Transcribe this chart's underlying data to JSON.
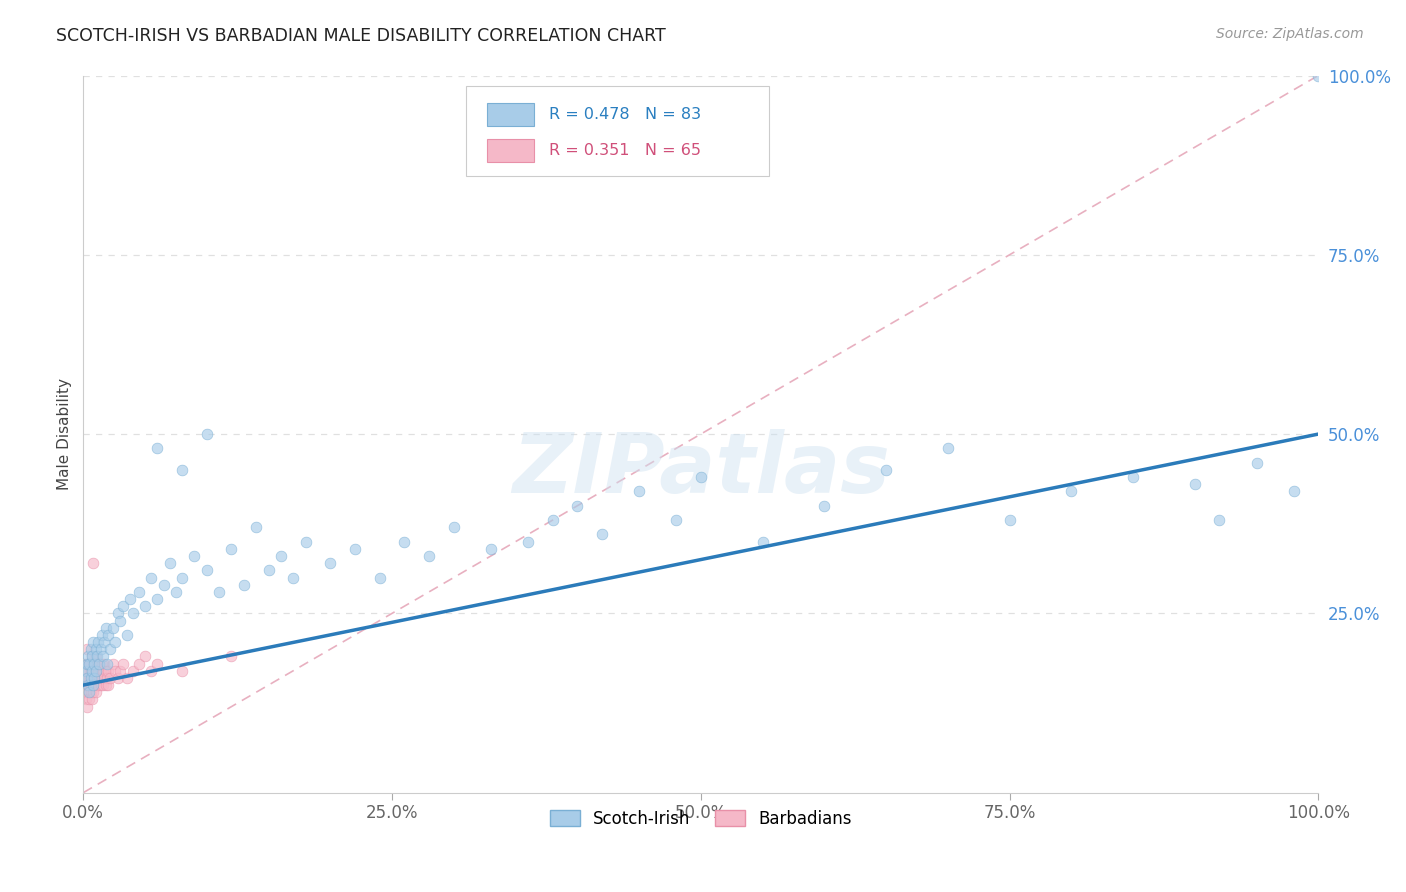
{
  "title": "SCOTCH-IRISH VS BARBADIAN MALE DISABILITY CORRELATION CHART",
  "source": "Source: ZipAtlas.com",
  "ylabel": "Male Disability",
  "watermark": "ZIPatlas",
  "xlim": [
    0.0,
    1.0
  ],
  "ylim": [
    0.0,
    1.0
  ],
  "scotch_irish_color": "#a8cce8",
  "scotch_irish_edge": "#7aafd4",
  "barbadian_color": "#f5b8c8",
  "barbadian_edge": "#e890a8",
  "regression_line_color": "#2b7bba",
  "diagonal_line_color": "#e8b0c0",
  "scotch_irish_R": 0.478,
  "scotch_irish_N": 83,
  "barbadian_R": 0.351,
  "barbadian_N": 65,
  "reg_line_x0": 0.0,
  "reg_line_y0": 0.15,
  "reg_line_x1": 1.0,
  "reg_line_y1": 0.5,
  "diag_line_x0": 0.0,
  "diag_line_y0": 0.0,
  "diag_line_x1": 1.0,
  "diag_line_y1": 1.0,
  "background_color": "#ffffff",
  "grid_color": "#e0e0e0",
  "ytick_color": "#4a90d9",
  "xtick_color": "#666666",
  "marker_size": 60,
  "marker_alpha": 0.65,
  "scotch_irish_x": [
    0.002,
    0.003,
    0.003,
    0.004,
    0.004,
    0.005,
    0.005,
    0.006,
    0.006,
    0.007,
    0.007,
    0.008,
    0.008,
    0.009,
    0.009,
    0.01,
    0.01,
    0.011,
    0.012,
    0.013,
    0.014,
    0.015,
    0.016,
    0.017,
    0.018,
    0.019,
    0.02,
    0.022,
    0.024,
    0.026,
    0.028,
    0.03,
    0.032,
    0.035,
    0.038,
    0.04,
    0.045,
    0.05,
    0.055,
    0.06,
    0.065,
    0.07,
    0.075,
    0.08,
    0.09,
    0.1,
    0.11,
    0.12,
    0.13,
    0.14,
    0.15,
    0.16,
    0.17,
    0.18,
    0.2,
    0.22,
    0.24,
    0.26,
    0.28,
    0.3,
    0.33,
    0.36,
    0.38,
    0.4,
    0.42,
    0.45,
    0.48,
    0.5,
    0.55,
    0.6,
    0.65,
    0.7,
    0.75,
    0.8,
    0.85,
    0.9,
    0.92,
    0.95,
    0.98,
    1.0,
    0.06,
    0.08,
    0.1
  ],
  "scotch_irish_y": [
    0.17,
    0.16,
    0.18,
    0.15,
    0.19,
    0.14,
    0.18,
    0.2,
    0.16,
    0.17,
    0.19,
    0.15,
    0.21,
    0.16,
    0.18,
    0.2,
    0.17,
    0.19,
    0.21,
    0.18,
    0.2,
    0.22,
    0.19,
    0.21,
    0.23,
    0.18,
    0.22,
    0.2,
    0.23,
    0.21,
    0.25,
    0.24,
    0.26,
    0.22,
    0.27,
    0.25,
    0.28,
    0.26,
    0.3,
    0.27,
    0.29,
    0.32,
    0.28,
    0.3,
    0.33,
    0.31,
    0.28,
    0.34,
    0.29,
    0.37,
    0.31,
    0.33,
    0.3,
    0.35,
    0.32,
    0.34,
    0.3,
    0.35,
    0.33,
    0.37,
    0.34,
    0.35,
    0.38,
    0.4,
    0.36,
    0.42,
    0.38,
    0.44,
    0.35,
    0.4,
    0.45,
    0.48,
    0.38,
    0.42,
    0.44,
    0.43,
    0.38,
    0.46,
    0.42,
    1.0,
    0.48,
    0.45,
    0.5
  ],
  "barbadian_x": [
    0.001,
    0.001,
    0.001,
    0.002,
    0.002,
    0.002,
    0.003,
    0.003,
    0.003,
    0.003,
    0.004,
    0.004,
    0.004,
    0.005,
    0.005,
    0.005,
    0.006,
    0.006,
    0.006,
    0.007,
    0.007,
    0.007,
    0.008,
    0.008,
    0.008,
    0.009,
    0.009,
    0.009,
    0.01,
    0.01,
    0.01,
    0.011,
    0.011,
    0.012,
    0.012,
    0.013,
    0.013,
    0.014,
    0.014,
    0.015,
    0.015,
    0.016,
    0.016,
    0.017,
    0.017,
    0.018,
    0.018,
    0.019,
    0.02,
    0.02,
    0.022,
    0.024,
    0.026,
    0.028,
    0.03,
    0.032,
    0.035,
    0.04,
    0.045,
    0.05,
    0.055,
    0.06,
    0.08,
    0.12,
    0.008
  ],
  "barbadian_y": [
    0.14,
    0.16,
    0.18,
    0.13,
    0.17,
    0.15,
    0.12,
    0.16,
    0.18,
    0.2,
    0.14,
    0.17,
    0.15,
    0.13,
    0.16,
    0.18,
    0.14,
    0.17,
    0.15,
    0.13,
    0.16,
    0.19,
    0.15,
    0.17,
    0.14,
    0.16,
    0.18,
    0.15,
    0.14,
    0.17,
    0.19,
    0.16,
    0.18,
    0.15,
    0.17,
    0.16,
    0.18,
    0.15,
    0.17,
    0.16,
    0.18,
    0.17,
    0.15,
    0.16,
    0.18,
    0.17,
    0.15,
    0.16,
    0.15,
    0.17,
    0.16,
    0.18,
    0.17,
    0.16,
    0.17,
    0.18,
    0.16,
    0.17,
    0.18,
    0.19,
    0.17,
    0.18,
    0.17,
    0.19,
    0.32
  ]
}
